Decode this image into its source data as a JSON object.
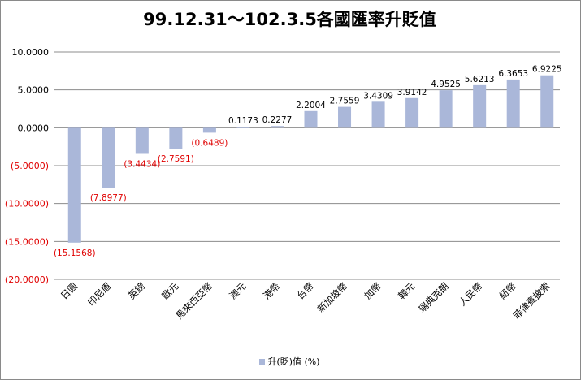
{
  "chart_data": {
    "type": "bar",
    "title": "99.12.31～102.3.5各國匯率升貶值",
    "categories": [
      "日圓",
      "印尼盾",
      "英鎊",
      "歐元",
      "馬來西亞幣",
      "澳元",
      "港幣",
      "台幣",
      "新加坡幣",
      "加幣",
      "韓元",
      "瑞典克朗",
      "人民幣",
      "紐幣",
      "菲律賓披索"
    ],
    "series": [
      {
        "name": "升(貶)值 (%)",
        "values": [
          -15.1568,
          -7.8977,
          -3.4434,
          -2.7591,
          -0.6489,
          0.1173,
          0.2277,
          2.2004,
          2.7559,
          3.4309,
          3.9142,
          4.9525,
          5.6213,
          6.3653,
          6.9225
        ],
        "labels": [
          "(15.1568)",
          "(7.8977)",
          "(3.4434)",
          "(2.7591)",
          "(0.6489)",
          "0.1173",
          "0.2277",
          "2.2004",
          "2.7559",
          "3.4309",
          "3.9142",
          "4.9525",
          "5.6213",
          "6.3653",
          "6.9225"
        ]
      }
    ],
    "yticks": [
      "10.0000",
      "5.0000",
      "0.0000",
      "(5.0000)",
      "(10.0000)",
      "(15.0000)",
      "(20.0000)"
    ],
    "ylim": [
      -20,
      10
    ],
    "grid": true,
    "legend": "bottom",
    "colors": {
      "bar": "#aab7d9",
      "negative_text": "#e00000",
      "positive_text": "#000000",
      "grid": "#8c8c8c"
    }
  }
}
